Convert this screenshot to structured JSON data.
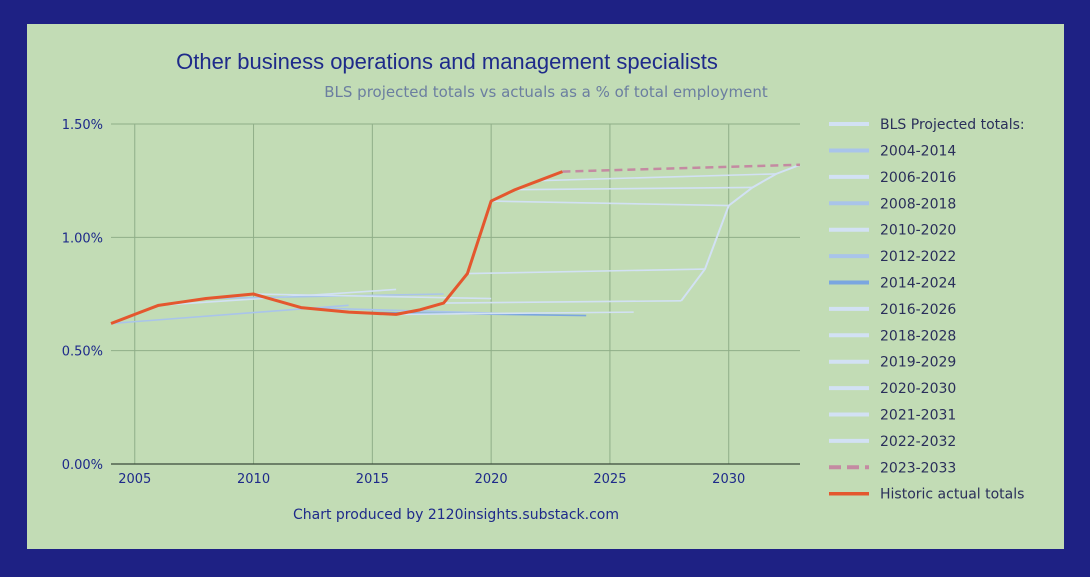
{
  "chart_data": {
    "type": "line",
    "title": "Other business operations and management specialists",
    "subtitle": "BLS projected totals vs actuals as a % of total employment",
    "credit": "Chart produced by 2120insights.substack.com",
    "xlim": [
      2004,
      2033
    ],
    "ylim": [
      0,
      1.5
    ],
    "x_ticks": [
      2005,
      2010,
      2015,
      2020,
      2025,
      2030
    ],
    "x_tick_labels": [
      "2005",
      "2010",
      "2015",
      "2020",
      "2025",
      "2030"
    ],
    "y_ticks": [
      0,
      0.5,
      1.0,
      1.5
    ],
    "y_tick_labels": [
      "0.00%",
      "0.50%",
      "1.00%",
      "1.50%"
    ],
    "grid": true,
    "legend_position": "right",
    "legend_header": "BLS Projected totals:",
    "colors": {
      "background": "#1e2184",
      "plot": "#c2dcb5",
      "grid": "#8fae88",
      "title": "#1e2a8a",
      "subtitle": "#6b7ea0",
      "projection": "#a9c4ea",
      "projection_light": "#d2e1f4",
      "projection_2014": "#7aa6e0",
      "projection_2023": "#c48aa2",
      "historic": "#e4572e"
    },
    "series": [
      {
        "name": "2004-2014",
        "x": [
          2004,
          2014
        ],
        "y": [
          0.62,
          0.7
        ],
        "color": "#a9c4ea",
        "dash": false
      },
      {
        "name": "2006-2016",
        "x": [
          2006,
          2016
        ],
        "y": [
          0.7,
          0.77
        ],
        "color": "#d2e1f4",
        "dash": false
      },
      {
        "name": "2008-2018",
        "x": [
          2008,
          2018
        ],
        "y": [
          0.73,
          0.75
        ],
        "color": "#a9c4ea",
        "dash": false
      },
      {
        "name": "2010-2020",
        "x": [
          2010,
          2020
        ],
        "y": [
          0.75,
          0.73
        ],
        "color": "#d2e1f4",
        "dash": false
      },
      {
        "name": "2012-2022",
        "x": [
          2012,
          2022
        ],
        "y": [
          0.69,
          0.66
        ],
        "color": "#a9c4ea",
        "dash": false
      },
      {
        "name": "2014-2024",
        "x": [
          2014,
          2024
        ],
        "y": [
          0.67,
          0.655
        ],
        "color": "#7aa6e0",
        "dash": false
      },
      {
        "name": "2016-2026",
        "x": [
          2016,
          2026
        ],
        "y": [
          0.66,
          0.67
        ],
        "color": "#d2e1f4",
        "dash": false
      },
      {
        "name": "2018-2028",
        "x": [
          2018,
          2028
        ],
        "y": [
          0.71,
          0.72
        ],
        "color": "#d2e1f4",
        "dash": false
      },
      {
        "name": "2019-2029",
        "x": [
          2019,
          2029
        ],
        "y": [
          0.84,
          0.86
        ],
        "color": "#d2e1f4",
        "dash": false
      },
      {
        "name": "2020-2030",
        "x": [
          2020,
          2030
        ],
        "y": [
          1.16,
          1.14
        ],
        "color": "#d2e1f4",
        "dash": false
      },
      {
        "name": "2021-2031",
        "x": [
          2021,
          2031
        ],
        "y": [
          1.21,
          1.22
        ],
        "color": "#d2e1f4",
        "dash": false
      },
      {
        "name": "2022-2032",
        "x": [
          2022,
          2032
        ],
        "y": [
          1.25,
          1.28
        ],
        "color": "#d2e1f4",
        "dash": false
      },
      {
        "name": "2023-2033",
        "x": [
          2023,
          2033
        ],
        "y": [
          1.29,
          1.32
        ],
        "color": "#c48aa2",
        "dash": true
      },
      {
        "name": "Historic actual totals",
        "x": [
          2004,
          2005,
          2006,
          2007,
          2008,
          2009,
          2010,
          2011,
          2012,
          2013,
          2014,
          2015,
          2016,
          2017,
          2018,
          2019,
          2020,
          2021,
          2022,
          2023
        ],
        "y": [
          0.62,
          0.66,
          0.7,
          0.715,
          0.73,
          0.74,
          0.75,
          0.72,
          0.69,
          0.68,
          0.67,
          0.665,
          0.66,
          0.68,
          0.71,
          0.84,
          1.16,
          1.21,
          1.25,
          1.29
        ],
        "color": "#e4572e",
        "dash": false,
        "width": 3
      }
    ],
    "projection_tail": {
      "x": [
        2028,
        2029,
        2030,
        2031,
        2032,
        2033
      ],
      "y": [
        0.72,
        0.86,
        1.14,
        1.22,
        1.28,
        1.32
      ],
      "color": "#d2e1f4"
    }
  }
}
